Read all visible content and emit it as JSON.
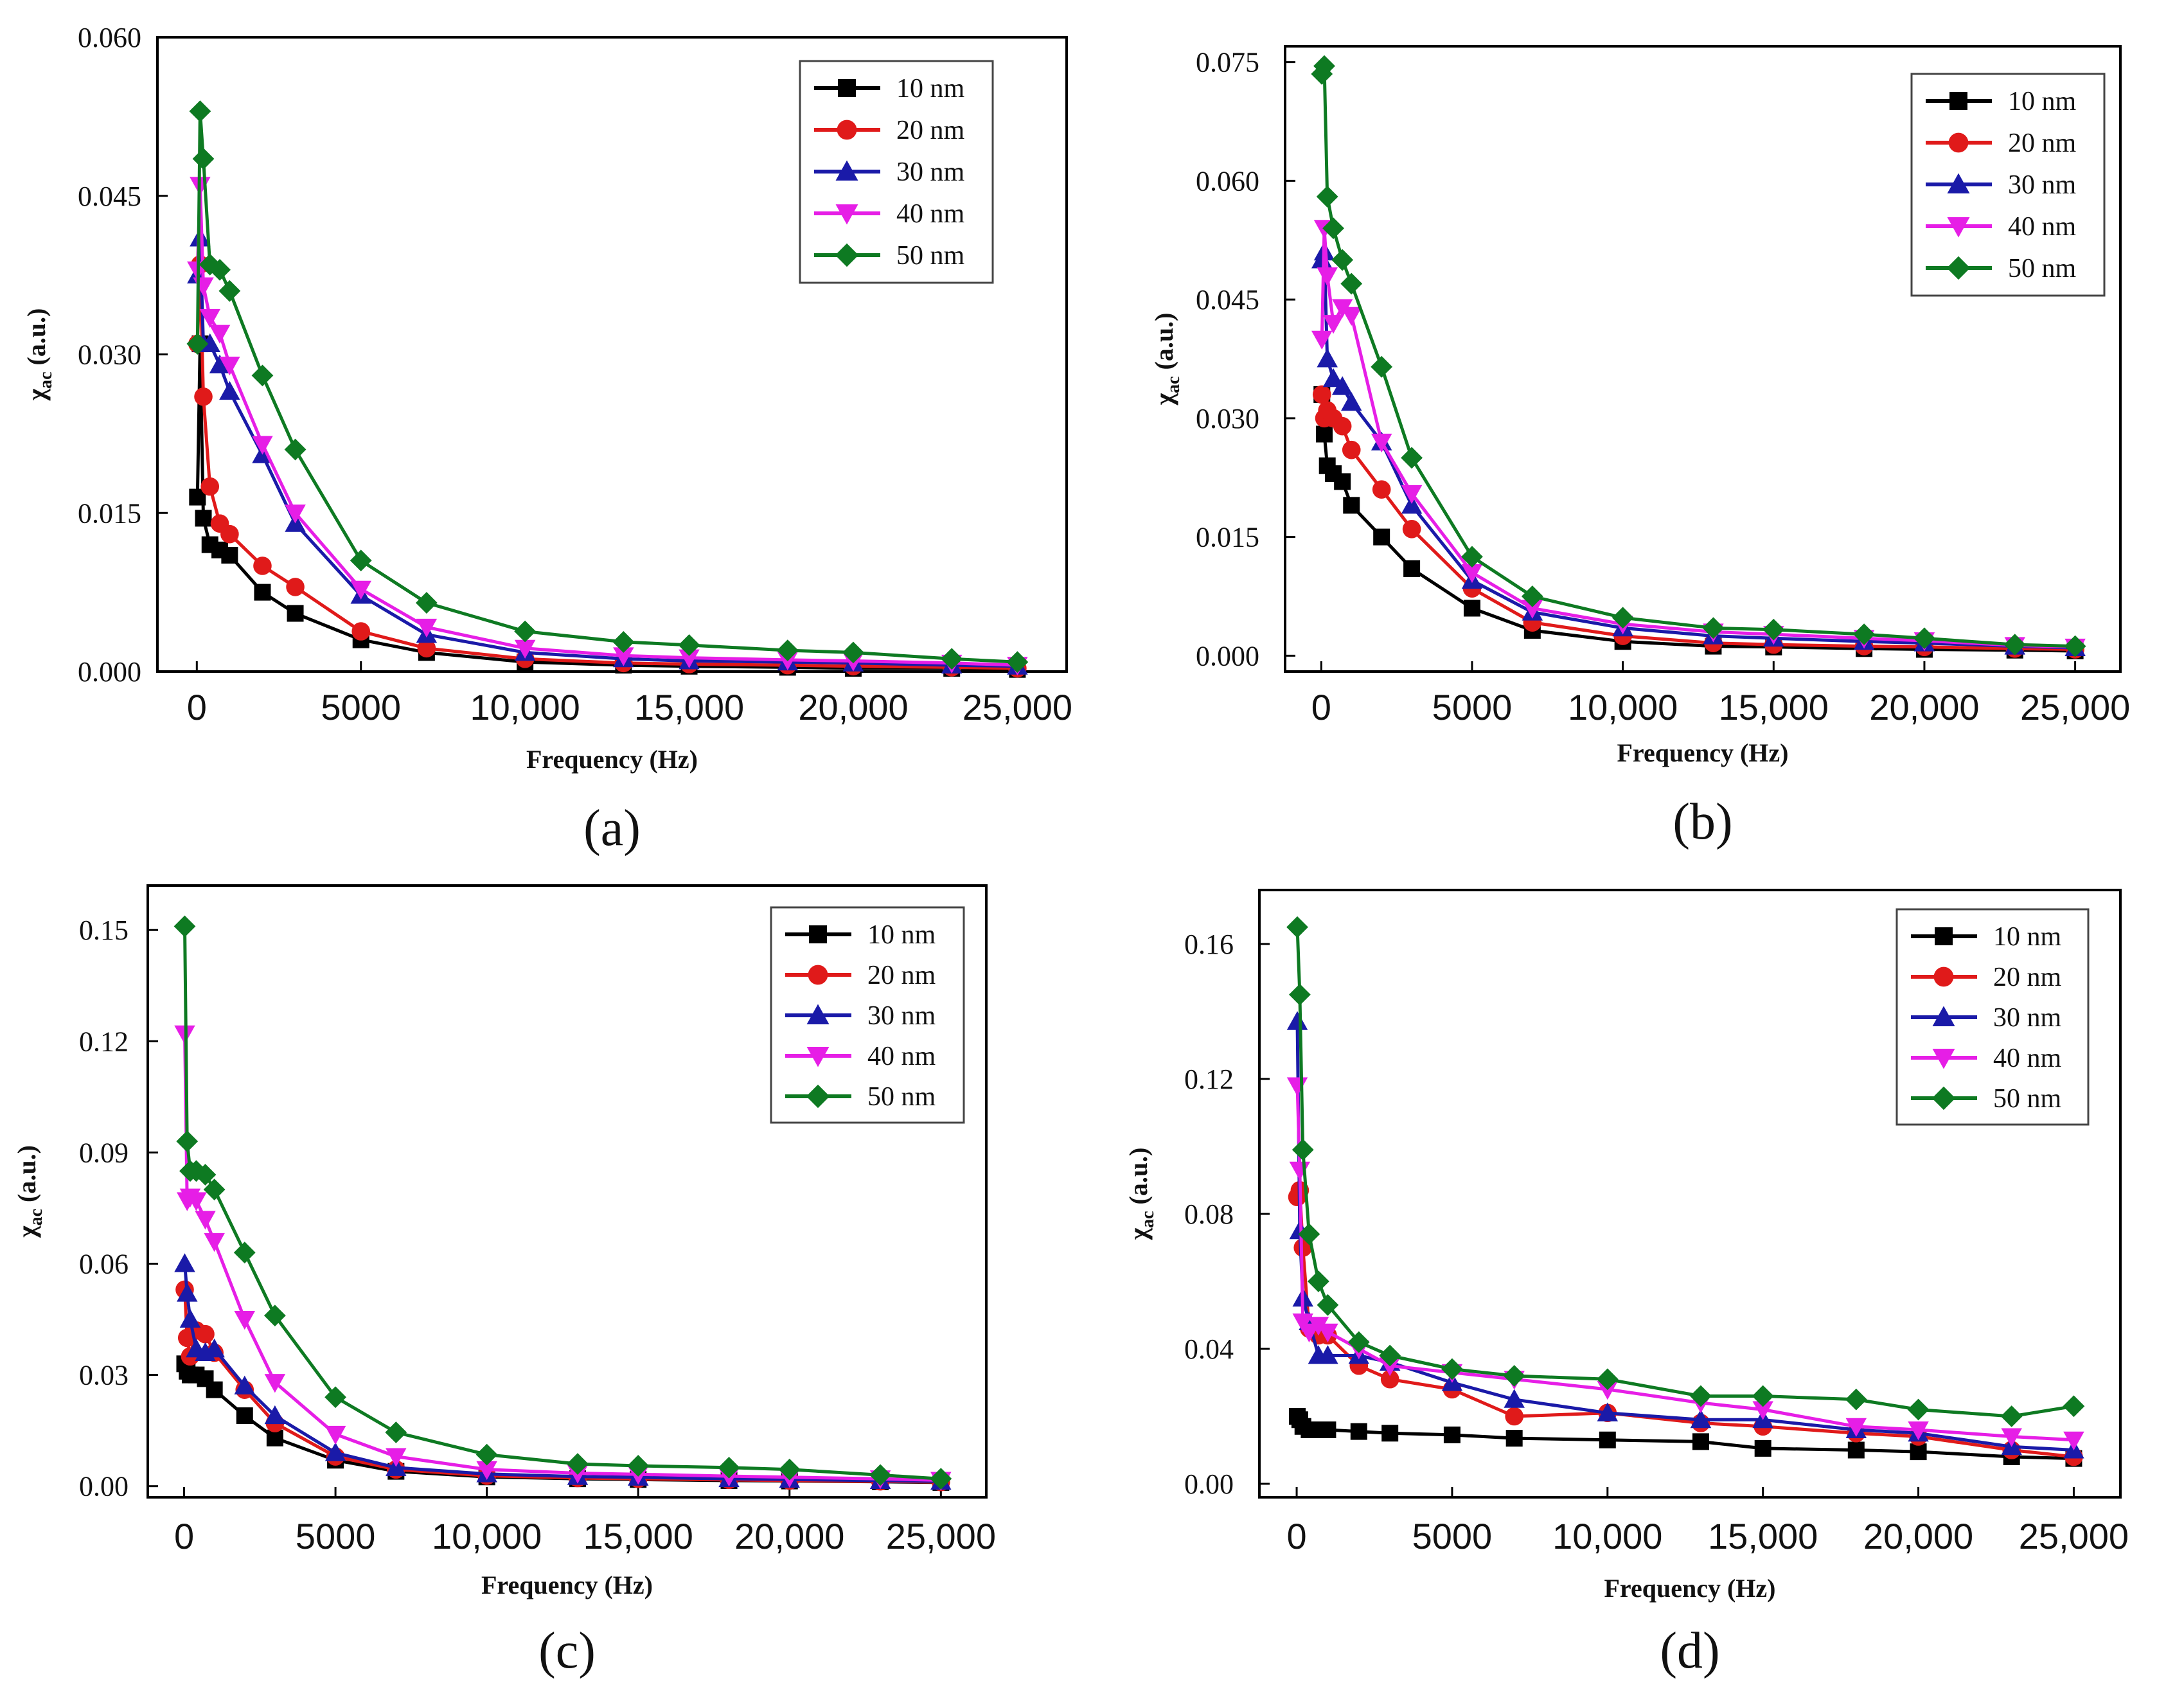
{
  "colors": {
    "10 nm": "#000000",
    "20 nm": "#e01a1a",
    "30 nm": "#1a1aa8",
    "40 nm": "#e61ee6",
    "50 nm": "#0e7a22"
  },
  "markers": {
    "10 nm": "square",
    "20 nm": "circle",
    "30 nm": "triangle-up",
    "40 nm": "triangle-down",
    "50 nm": "diamond"
  },
  "chart_data": [
    {
      "type": "line",
      "panel_label": "(a)",
      "xlabel": "Frequency (Hz)",
      "ylabel": "χac (a.u.)",
      "ylabel_main": "χ",
      "ylabel_sub": "ac",
      "ylabel_unit": " (a.u.)",
      "xlim": [
        -1200,
        26500
      ],
      "ylim": [
        0,
        0.06
      ],
      "xticks": [
        0,
        5000,
        10000,
        15000,
        20000,
        25000
      ],
      "xtick_labels": [
        "0",
        "5000",
        "10,000",
        "15,000",
        "20,000",
        "25,000"
      ],
      "yticks": [
        0,
        0.015,
        0.03,
        0.045,
        0.06
      ],
      "ytick_labels": [
        "0.000",
        "0.015",
        "0.030",
        "0.045",
        "0.060"
      ],
      "legend": [
        "10 nm",
        "20 nm",
        "30 nm",
        "40 nm",
        "50 nm"
      ],
      "legend_position": "top-right",
      "x": [
        20,
        100,
        200,
        400,
        700,
        1000,
        2000,
        3000,
        5000,
        7000,
        10000,
        13000,
        15000,
        18000,
        20000,
        23000,
        25000
      ],
      "series": [
        {
          "name": "10 nm",
          "values": [
            0.0165,
            0.031,
            0.0145,
            0.012,
            0.0115,
            0.011,
            0.0075,
            0.0055,
            0.003,
            0.0018,
            0.0009,
            0.0006,
            0.0005,
            0.0004,
            0.0003,
            0.0003,
            0.0002
          ]
        },
        {
          "name": "20 nm",
          "values": [
            0.031,
            0.0385,
            0.026,
            0.0175,
            0.014,
            0.013,
            0.01,
            0.008,
            0.0038,
            0.0022,
            0.0012,
            0.0008,
            0.0007,
            0.0006,
            0.0005,
            0.0004,
            0.0003
          ]
        },
        {
          "name": "30 nm",
          "values": [
            0.0375,
            0.041,
            0.031,
            0.031,
            0.029,
            0.0265,
            0.0205,
            0.014,
            0.0072,
            0.0035,
            0.0018,
            0.0012,
            0.001,
            0.0009,
            0.0008,
            0.0006,
            0.0005
          ]
        },
        {
          "name": "40 nm",
          "values": [
            0.038,
            0.046,
            0.0365,
            0.0335,
            0.032,
            0.029,
            0.0215,
            0.015,
            0.0078,
            0.0042,
            0.0022,
            0.0015,
            0.0013,
            0.0011,
            0.001,
            0.0008,
            0.0006
          ]
        },
        {
          "name": "50 nm",
          "values": [
            0.031,
            0.053,
            0.0485,
            0.0385,
            0.038,
            0.036,
            0.028,
            0.021,
            0.0105,
            0.0065,
            0.0038,
            0.0028,
            0.0025,
            0.002,
            0.0018,
            0.0012,
            0.0009
          ]
        }
      ]
    },
    {
      "type": "line",
      "panel_label": "(b)",
      "xlabel": "Frequency (Hz)",
      "ylabel": "χac (a.u.)",
      "ylabel_main": "χ",
      "ylabel_sub": "ac",
      "ylabel_unit": " (a.u.)",
      "xlim": [
        -1200,
        26500
      ],
      "ylim": [
        -0.002,
        0.077
      ],
      "xticks": [
        0,
        5000,
        10000,
        15000,
        20000,
        25000
      ],
      "xtick_labels": [
        "0",
        "5000",
        "10,000",
        "15,000",
        "20,000",
        "25,000"
      ],
      "yticks": [
        0,
        0.015,
        0.03,
        0.045,
        0.06,
        0.075
      ],
      "ytick_labels": [
        "0.000",
        "0.015",
        "0.030",
        "0.045",
        "0.060",
        "0.075"
      ],
      "legend": [
        "10 nm",
        "20 nm",
        "30 nm",
        "40 nm",
        "50 nm"
      ],
      "legend_position": "top-right",
      "x": [
        20,
        100,
        200,
        400,
        700,
        1000,
        2000,
        3000,
        5000,
        7000,
        10000,
        13000,
        15000,
        18000,
        20000,
        23000,
        25000
      ],
      "series": [
        {
          "name": "10 nm",
          "values": [
            0.033,
            0.028,
            0.024,
            0.023,
            0.022,
            0.019,
            0.015,
            0.011,
            0.006,
            0.0032,
            0.0018,
            0.0012,
            0.0011,
            0.0009,
            0.0008,
            0.0007,
            0.0006
          ]
        },
        {
          "name": "20 nm",
          "values": [
            0.033,
            0.03,
            0.031,
            0.03,
            0.029,
            0.026,
            0.021,
            0.016,
            0.0085,
            0.0042,
            0.0025,
            0.0016,
            0.0014,
            0.0012,
            0.0011,
            0.0009,
            0.0008
          ]
        },
        {
          "name": "30 nm",
          "values": [
            0.05,
            0.051,
            0.0375,
            0.035,
            0.034,
            0.032,
            0.027,
            0.019,
            0.0095,
            0.0055,
            0.0035,
            0.0025,
            0.0022,
            0.0018,
            0.0016,
            0.0012,
            0.001
          ]
        },
        {
          "name": "40 nm",
          "values": [
            0.04,
            0.054,
            0.048,
            0.042,
            0.044,
            0.043,
            0.027,
            0.0205,
            0.0105,
            0.006,
            0.004,
            0.003,
            0.0027,
            0.0022,
            0.0019,
            0.0013,
            0.0011
          ]
        },
        {
          "name": "50 nm",
          "values": [
            0.0735,
            0.0745,
            0.058,
            0.054,
            0.05,
            0.047,
            0.0365,
            0.025,
            0.0125,
            0.0075,
            0.0048,
            0.0035,
            0.0033,
            0.0027,
            0.0022,
            0.0014,
            0.0012
          ]
        }
      ]
    },
    {
      "type": "line",
      "panel_label": "(c)",
      "xlabel": "Frequency (Hz)",
      "ylabel": "χac (a.u.)",
      "ylabel_main": "χ",
      "ylabel_sub": "ac",
      "ylabel_unit": " (a.u.)",
      "xlim": [
        -1200,
        26500
      ],
      "ylim": [
        -0.003,
        0.162
      ],
      "xticks": [
        0,
        5000,
        10000,
        15000,
        20000,
        25000
      ],
      "xtick_labels": [
        "0",
        "5000",
        "10,000",
        "15,000",
        "20,000",
        "25,000"
      ],
      "yticks": [
        0,
        0.03,
        0.06,
        0.09,
        0.12,
        0.15
      ],
      "ytick_labels": [
        "0.00",
        "0.03",
        "0.06",
        "0.09",
        "0.12",
        "0.15"
      ],
      "legend": [
        "10 nm",
        "20 nm",
        "30 nm",
        "40 nm",
        "50 nm"
      ],
      "legend_position": "top-right",
      "x": [
        20,
        100,
        200,
        400,
        700,
        1000,
        2000,
        3000,
        5000,
        7000,
        10000,
        13000,
        15000,
        18000,
        20000,
        23000,
        25000
      ],
      "series": [
        {
          "name": "10 nm",
          "values": [
            0.033,
            0.031,
            0.03,
            0.03,
            0.029,
            0.026,
            0.019,
            0.013,
            0.007,
            0.004,
            0.0025,
            0.002,
            0.0018,
            0.0015,
            0.0014,
            0.0012,
            0.001
          ]
        },
        {
          "name": "20 nm",
          "values": [
            0.053,
            0.04,
            0.035,
            0.042,
            0.041,
            0.036,
            0.026,
            0.017,
            0.008,
            0.0045,
            0.0028,
            0.0022,
            0.002,
            0.0017,
            0.0015,
            0.0013,
            0.0011
          ]
        },
        {
          "name": "30 nm",
          "values": [
            0.06,
            0.052,
            0.045,
            0.037,
            0.036,
            0.037,
            0.027,
            0.019,
            0.009,
            0.005,
            0.0033,
            0.0026,
            0.0024,
            0.002,
            0.0018,
            0.0015,
            0.0013
          ]
        },
        {
          "name": "40 nm",
          "values": [
            0.122,
            0.077,
            0.078,
            0.077,
            0.072,
            0.066,
            0.045,
            0.028,
            0.014,
            0.008,
            0.0045,
            0.0035,
            0.0032,
            0.0027,
            0.0024,
            0.002,
            0.0016
          ]
        },
        {
          "name": "50 nm",
          "values": [
            0.151,
            0.093,
            0.085,
            0.085,
            0.084,
            0.08,
            0.063,
            0.046,
            0.024,
            0.0145,
            0.0085,
            0.006,
            0.0055,
            0.005,
            0.0045,
            0.003,
            0.002
          ]
        }
      ]
    },
    {
      "type": "line",
      "panel_label": "(d)",
      "xlabel": "Frequency (Hz)",
      "ylabel": "χac (a.u.)",
      "ylabel_main": "χ",
      "ylabel_sub": "ac",
      "ylabel_unit": " (a.u.)",
      "xlim": [
        -1200,
        26500
      ],
      "ylim": [
        -0.004,
        0.176
      ],
      "xticks": [
        0,
        5000,
        10000,
        15000,
        20000,
        25000
      ],
      "xtick_labels": [
        "0",
        "5000",
        "10,000",
        "15,000",
        "20,000",
        "25,000"
      ],
      "yticks": [
        0,
        0.04,
        0.08,
        0.12,
        0.16
      ],
      "ytick_labels": [
        "0.00",
        "0.04",
        "0.08",
        "0.12",
        "0.16"
      ],
      "legend": [
        "10 nm",
        "20 nm",
        "30 nm",
        "40 nm",
        "50 nm"
      ],
      "legend_position": "top-right",
      "x": [
        20,
        100,
        200,
        400,
        700,
        1000,
        2000,
        3000,
        5000,
        7000,
        10000,
        13000,
        15000,
        18000,
        20000,
        23000,
        25000
      ],
      "series": [
        {
          "name": "10 nm",
          "values": [
            0.02,
            0.019,
            0.017,
            0.016,
            0.016,
            0.016,
            0.0155,
            0.015,
            0.0145,
            0.0135,
            0.013,
            0.0125,
            0.0105,
            0.01,
            0.0095,
            0.008,
            0.0075
          ]
        },
        {
          "name": "20 nm",
          "values": [
            0.085,
            0.087,
            0.07,
            0.046,
            0.044,
            0.044,
            0.035,
            0.031,
            0.028,
            0.02,
            0.021,
            0.018,
            0.017,
            0.015,
            0.014,
            0.01,
            0.008
          ]
        },
        {
          "name": "30 nm",
          "values": [
            0.137,
            0.075,
            0.055,
            0.048,
            0.038,
            0.038,
            0.038,
            0.036,
            0.03,
            0.025,
            0.021,
            0.019,
            0.019,
            0.016,
            0.015,
            0.011,
            0.01
          ]
        },
        {
          "name": "40 nm",
          "values": [
            0.118,
            0.093,
            0.048,
            0.045,
            0.047,
            0.045,
            0.04,
            0.035,
            0.033,
            0.031,
            0.028,
            0.024,
            0.022,
            0.017,
            0.016,
            0.014,
            0.013
          ]
        },
        {
          "name": "50 nm",
          "values": [
            0.165,
            0.145,
            0.099,
            0.074,
            0.06,
            0.053,
            0.042,
            0.038,
            0.034,
            0.032,
            0.031,
            0.026,
            0.026,
            0.025,
            0.022,
            0.02,
            0.023
          ]
        }
      ]
    }
  ]
}
